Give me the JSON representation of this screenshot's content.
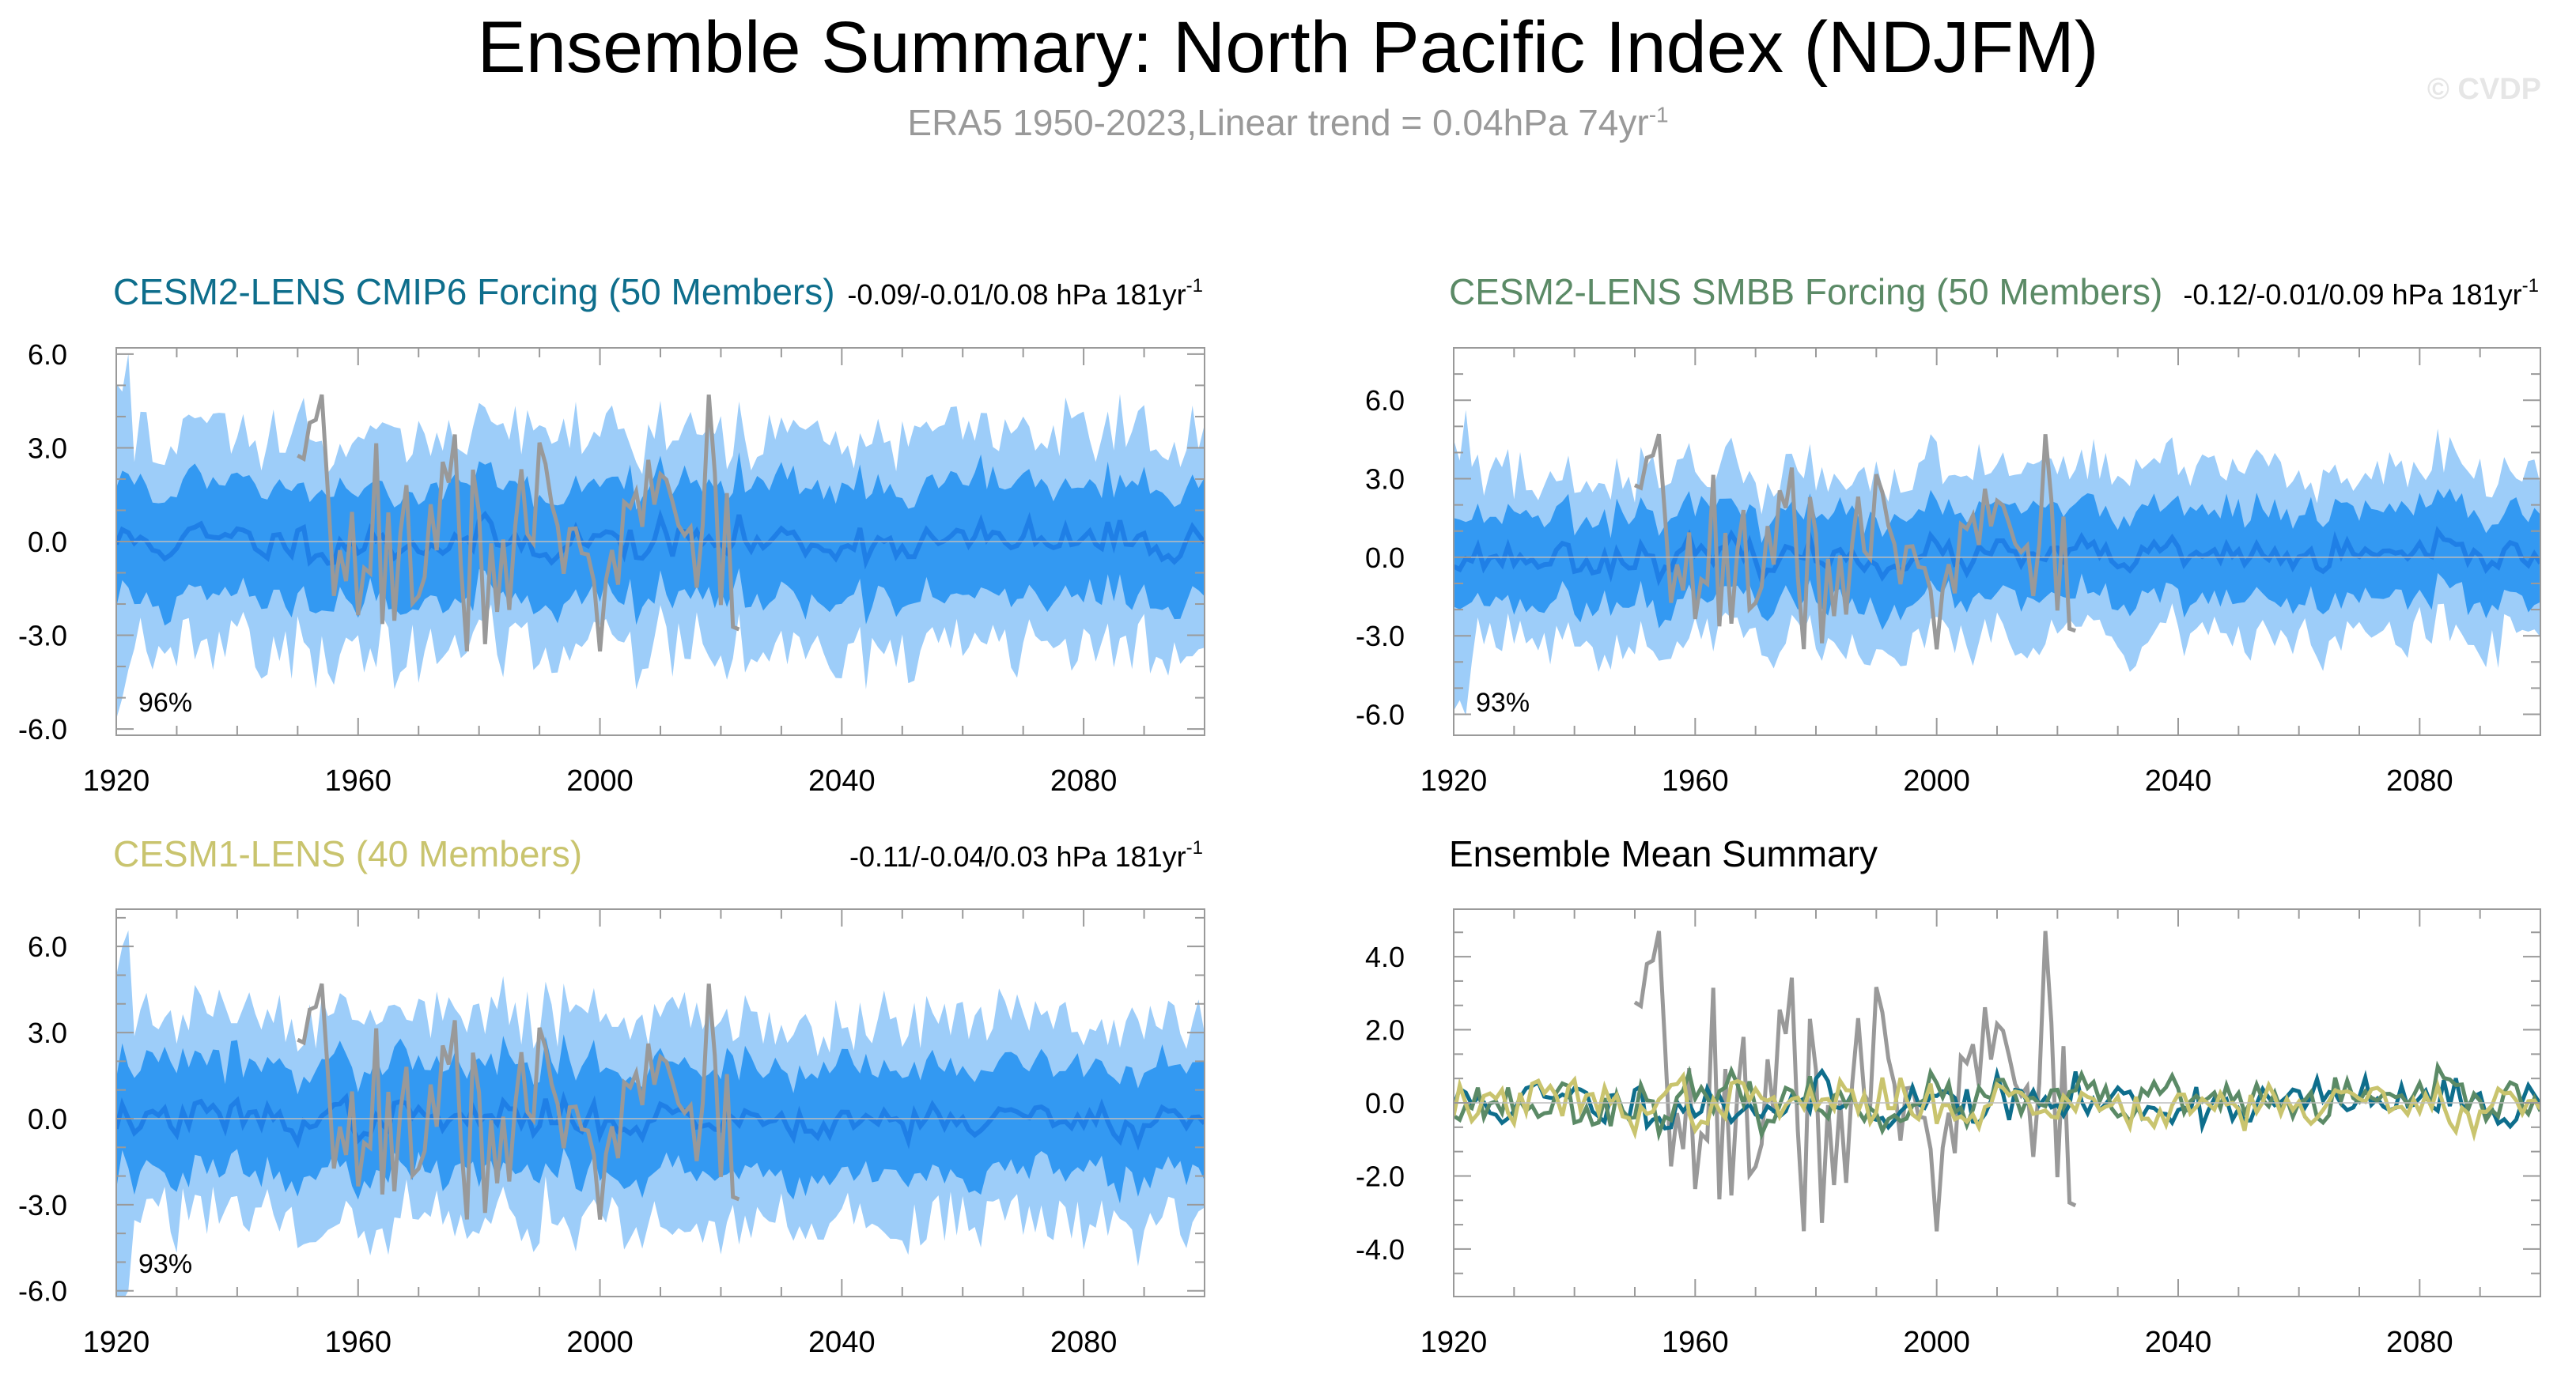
{
  "title": "Ensemble Summary: North Pacific Index (NDJFM)",
  "subtitle": {
    "text": "ERA5 1950-2023,Linear trend = 0.04hPa 74yr",
    "sup": "-1"
  },
  "watermark": "© CVDP",
  "colors": {
    "outer_band": "#9dcdf9",
    "inner_band": "#3399f2",
    "ensemble_mean": "#1f7fe6",
    "observations": "#999999",
    "cmip6": "#0e6e8c",
    "smbb": "#5b8a66",
    "lens1": "#c9c46e",
    "frame": "#9a9a9a"
  },
  "chart_data": [
    {
      "id": "cesm2-cmip6",
      "type": "area",
      "title": "CESM2-LENS CMIP6 Forcing (50 Members)",
      "title_color": "#0e6e8c",
      "trend_text": "-0.09/-0.01/0.08 hPa 181yr",
      "trend_sup": "-1",
      "percent_label": "96%",
      "xlim": [
        1920,
        2100
      ],
      "ylim": [
        -6.2,
        6.2
      ],
      "xticks": [
        1920,
        1960,
        2000,
        2040,
        2080
      ],
      "yticks": [
        6.0,
        3.0,
        0.0,
        -3.0,
        -6.0
      ],
      "ytick_labels": [
        "6.0",
        "3.0",
        "0.0",
        "-3.0",
        "-6.0"
      ],
      "seed": 11,
      "obs_seed": 7,
      "outer_width": 3.4,
      "inner_width": 1.8,
      "series": [
        {
          "name": "ERA5 observations",
          "x_range": [
            1950,
            2023
          ],
          "color": "#999999"
        },
        {
          "name": "Ensemble mean",
          "x_range": [
            1920,
            2100
          ],
          "color": "#1f7fe6"
        }
      ]
    },
    {
      "id": "cesm2-smbb",
      "type": "area",
      "title": "CESM2-LENS SMBB Forcing (50 Members)",
      "title_color": "#5b8a66",
      "trend_text": "-0.12/-0.01/0.09 hPa 181yr",
      "trend_sup": "-1",
      "percent_label": "93%",
      "xlim": [
        1920,
        2100
      ],
      "ylim": [
        -6.8,
        8.0
      ],
      "xticks": [
        1920,
        1960,
        2000,
        2040,
        2080
      ],
      "yticks": [
        6.0,
        3.0,
        0.0,
        -3.0,
        -6.0
      ],
      "ytick_labels": [
        "6.0",
        "3.0",
        "0.0",
        "-3.0",
        "-6.0"
      ],
      "seed": 23,
      "obs_seed": 7,
      "outer_width": 3.2,
      "inner_width": 1.7,
      "series": [
        {
          "name": "ERA5 observations",
          "x_range": [
            1950,
            2023
          ],
          "color": "#999999"
        },
        {
          "name": "Ensemble mean",
          "x_range": [
            1920,
            2100
          ],
          "color": "#1f7fe6"
        }
      ]
    },
    {
      "id": "cesm1-lens",
      "type": "area",
      "title": "CESM1-LENS (40 Members)",
      "title_color": "#c9c46e",
      "trend_text": "-0.11/-0.04/0.03 hPa 181yr",
      "trend_sup": "-1",
      "percent_label": "93%",
      "xlim": [
        1920,
        2100
      ],
      "ylim": [
        -6.2,
        7.3
      ],
      "xticks": [
        1920,
        1960,
        2000,
        2040,
        2080
      ],
      "yticks": [
        6.0,
        3.0,
        0.0,
        -3.0,
        -6.0
      ],
      "ytick_labels": [
        "6.0",
        "3.0",
        "0.0",
        "-3.0",
        "-6.0"
      ],
      "seed": 37,
      "obs_seed": 7,
      "outer_width": 3.5,
      "inner_width": 1.9,
      "series": [
        {
          "name": "ERA5 observations",
          "x_range": [
            1950,
            2023
          ],
          "color": "#999999"
        },
        {
          "name": "Ensemble mean",
          "x_range": [
            1920,
            2100
          ],
          "color": "#1f7fe6"
        }
      ]
    },
    {
      "id": "ensemble-mean-summary",
      "type": "line",
      "title": "Ensemble Mean Summary",
      "title_color": "#000000",
      "xlim": [
        1920,
        2100
      ],
      "ylim": [
        -5.3,
        5.3
      ],
      "xticks": [
        1920,
        1960,
        2000,
        2040,
        2080
      ],
      "yticks": [
        4.0,
        2.0,
        0.0,
        -2.0,
        -4.0
      ],
      "ytick_labels": [
        "4.0",
        "2.0",
        "0.0",
        "-2.0",
        "-4.0"
      ],
      "series": [
        {
          "name": "ERA5",
          "color": "#999999",
          "x_range": [
            1950,
            2023
          ]
        },
        {
          "name": "CESM2-LENS CMIP6 Forcing",
          "color": "#0e6e8c",
          "x_range": [
            1920,
            2100
          ],
          "seed": 11
        },
        {
          "name": "CESM2-LENS SMBB Forcing",
          "color": "#5b8a66",
          "x_range": [
            1920,
            2100
          ],
          "seed": 23
        },
        {
          "name": "CESM1-LENS",
          "color": "#c9c46e",
          "x_range": [
            1920,
            2100
          ],
          "seed": 37
        }
      ]
    }
  ]
}
